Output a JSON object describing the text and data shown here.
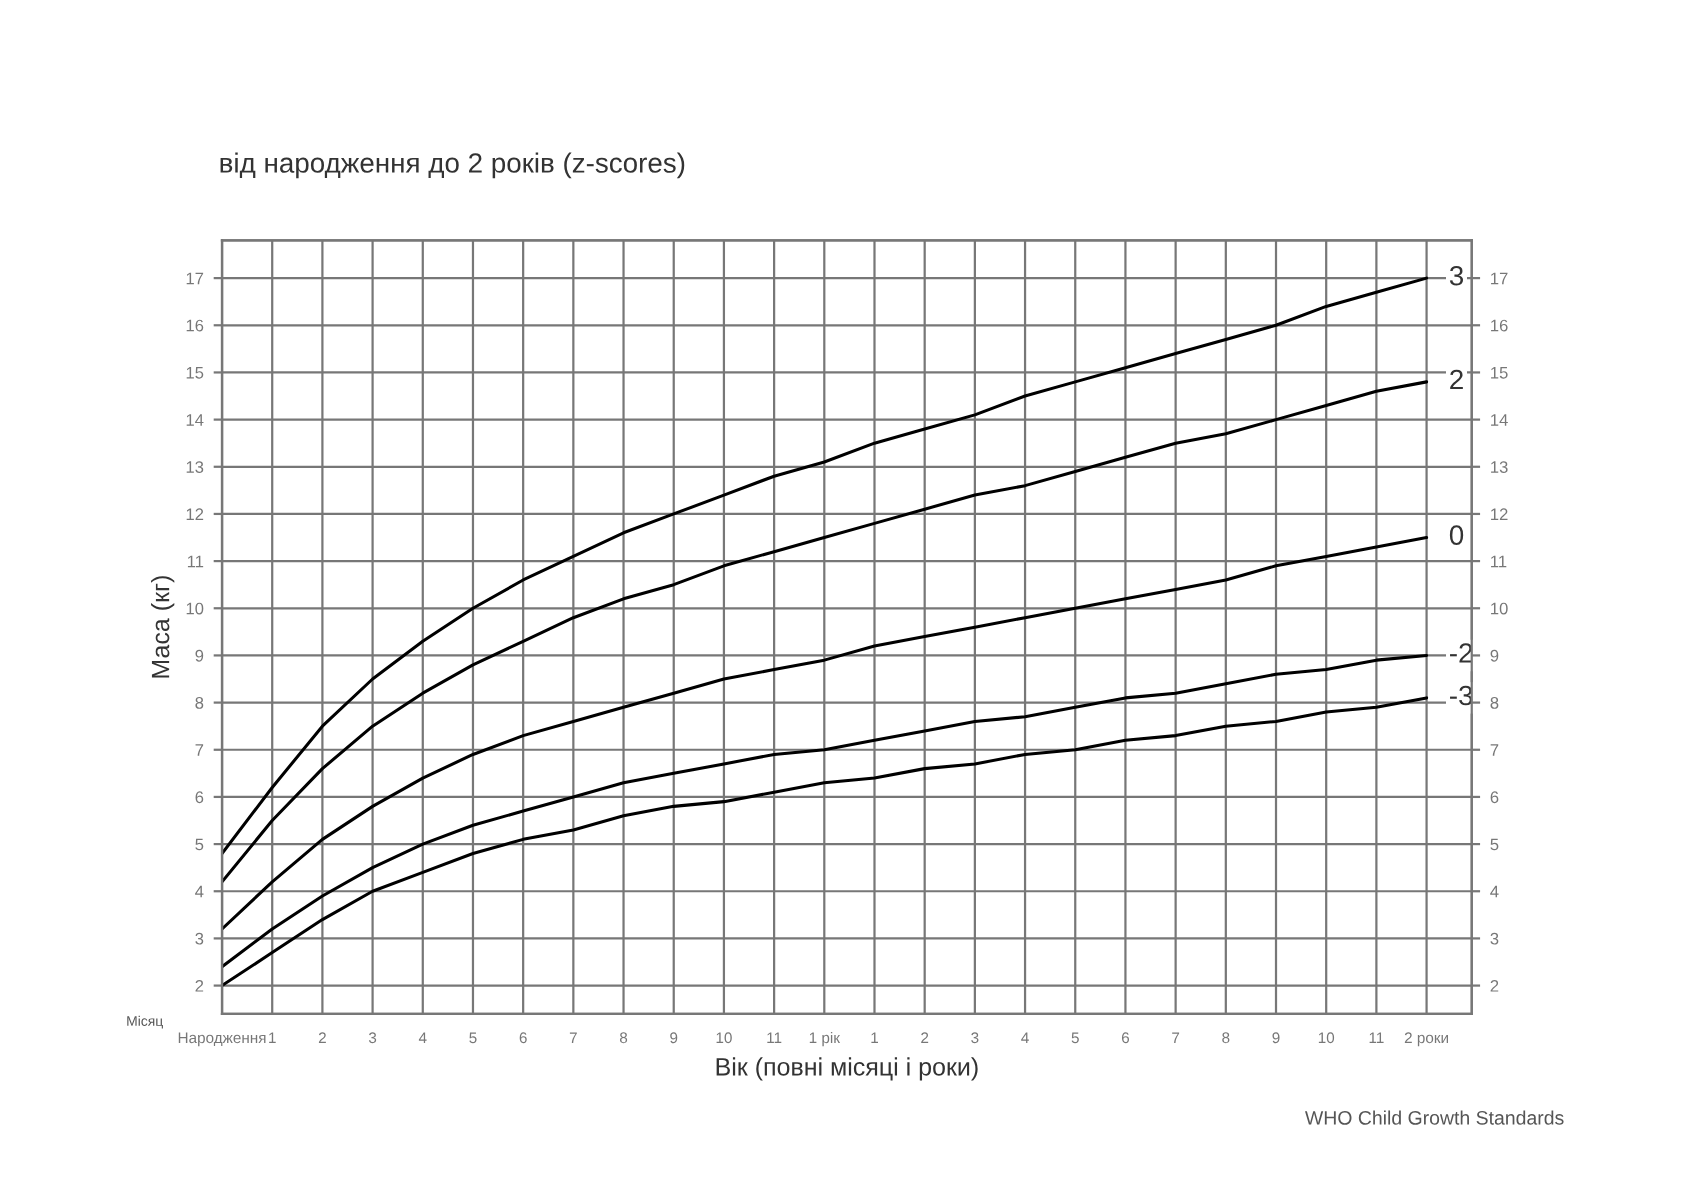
{
  "chart_data": {
    "type": "line",
    "title": "від народження до 2 років (z-scores)",
    "xlabel": "Вік (повні місяці і роки)",
    "ylabel": "Маса (кг)",
    "annotations": [
      "Місяц",
      "WHO Child Growth Standards"
    ],
    "categories": [
      "Народження",
      "1",
      "2",
      "3",
      "4",
      "5",
      "6",
      "7",
      "8",
      "9",
      "10",
      "11",
      "1 рік",
      "1",
      "2",
      "3",
      "4",
      "5",
      "6",
      "7",
      "8",
      "9",
      "10",
      "11",
      "2 роки"
    ],
    "series": [
      {
        "name": "3",
        "color": "#000000",
        "values": [
          4.8,
          6.2,
          7.5,
          8.5,
          9.3,
          10.0,
          10.6,
          11.1,
          11.6,
          12.0,
          12.4,
          12.8,
          13.1,
          13.5,
          13.8,
          14.1,
          14.5,
          14.8,
          15.1,
          15.4,
          15.7,
          16.0,
          16.4,
          16.7,
          17.0
        ]
      },
      {
        "name": "2",
        "color": "#000000",
        "values": [
          4.2,
          5.5,
          6.6,
          7.5,
          8.2,
          8.8,
          9.3,
          9.8,
          10.2,
          10.5,
          10.9,
          11.2,
          11.5,
          11.8,
          12.1,
          12.4,
          12.6,
          12.9,
          13.2,
          13.5,
          13.7,
          14.0,
          14.3,
          14.6,
          14.8
        ]
      },
      {
        "name": "0",
        "color": "#000000",
        "values": [
          3.2,
          4.2,
          5.1,
          5.8,
          6.4,
          6.9,
          7.3,
          7.6,
          7.9,
          8.2,
          8.5,
          8.7,
          8.9,
          9.2,
          9.4,
          9.6,
          9.8,
          10.0,
          10.2,
          10.4,
          10.6,
          10.9,
          11.1,
          11.3,
          11.5
        ]
      },
      {
        "name": "-2",
        "color": "#000000",
        "values": [
          2.4,
          3.2,
          3.9,
          4.5,
          5.0,
          5.4,
          5.7,
          6.0,
          6.3,
          6.5,
          6.7,
          6.9,
          7.0,
          7.2,
          7.4,
          7.6,
          7.7,
          7.9,
          8.1,
          8.2,
          8.4,
          8.6,
          8.7,
          8.9,
          9.0
        ]
      },
      {
        "name": "-3",
        "color": "#000000",
        "values": [
          2.0,
          2.7,
          3.4,
          4.0,
          4.4,
          4.8,
          5.1,
          5.3,
          5.6,
          5.8,
          5.9,
          6.1,
          6.3,
          6.4,
          6.6,
          6.7,
          6.9,
          7.0,
          7.2,
          7.3,
          7.5,
          7.6,
          7.8,
          7.9,
          8.1
        ]
      }
    ],
    "ylim": [
      1.4,
      17.8
    ],
    "yticks": [
      2,
      3,
      4,
      5,
      6,
      7,
      8,
      9,
      10,
      11,
      12,
      13,
      14,
      15,
      16,
      17
    ],
    "y2lim": [
      1.4,
      17.8
    ],
    "y2ticks": [
      2,
      3,
      4,
      5,
      6,
      7,
      8,
      9,
      10,
      11,
      12,
      13,
      14,
      15,
      16,
      17
    ],
    "grid": true,
    "line_style": "solid",
    "legend": false
  }
}
